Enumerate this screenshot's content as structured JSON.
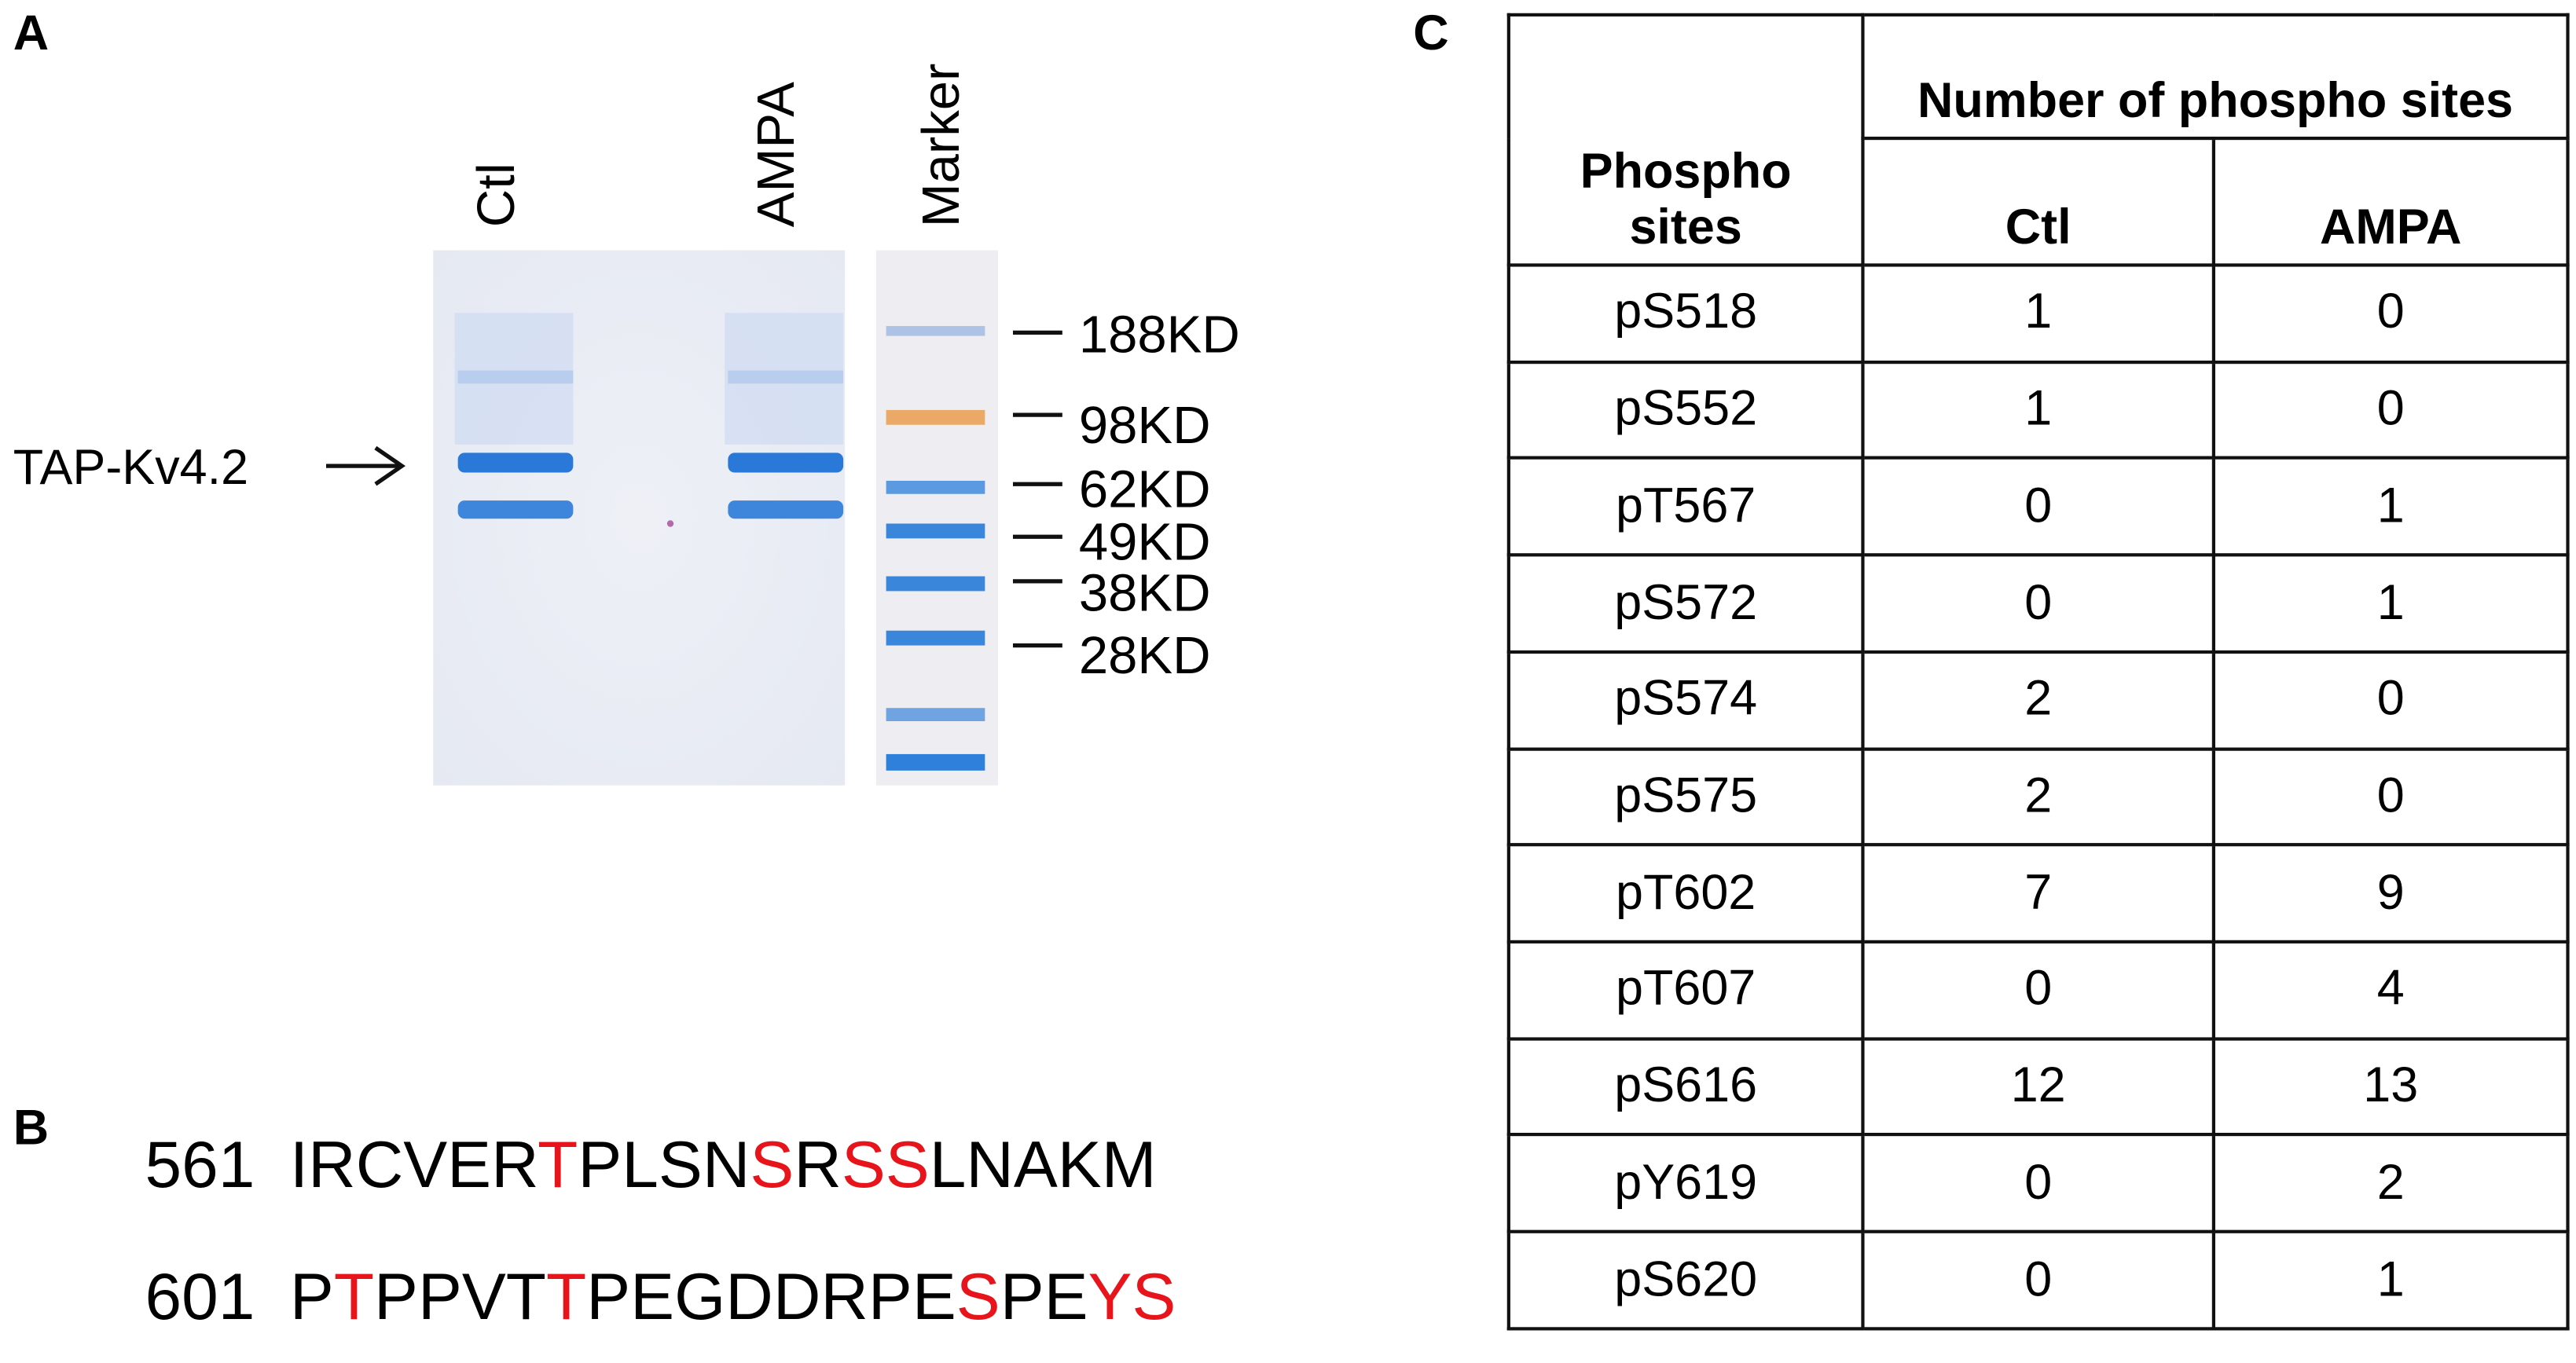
{
  "panels": {
    "a": "A",
    "b": "B",
    "c": "C"
  },
  "gel": {
    "lanes": [
      "Ctl",
      "AMPA",
      "Marker"
    ],
    "band_label": "TAP-Kv4.2",
    "markers": [
      "188KD",
      "98KD",
      "62KD",
      "49KD",
      "38KD",
      "28KD"
    ]
  },
  "sequence": [
    {
      "start": 561,
      "segments": [
        {
          "text": "IRCVER"
        },
        {
          "text": "T",
          "color": "#e8141b"
        },
        {
          "text": "PLSN"
        },
        {
          "text": "S",
          "color": "#e8141b"
        },
        {
          "text": "R"
        },
        {
          "text": "SS",
          "color": "#e8141b"
        },
        {
          "text": "LNAKM"
        }
      ]
    },
    {
      "start": 601,
      "segments": [
        {
          "text": "P"
        },
        {
          "text": "T",
          "color": "#e8141b"
        },
        {
          "text": "PPVT"
        },
        {
          "text": "T",
          "color": "#e8141b"
        },
        {
          "text": "PEGDDRPE"
        },
        {
          "text": "S",
          "color": "#e8141b"
        },
        {
          "text": "PE"
        },
        {
          "text": "YS",
          "color": "#e8141b"
        }
      ]
    }
  ],
  "table": {
    "header": {
      "site": "Phospho sites",
      "group": "Number of phospho sites",
      "columns": [
        "Ctl",
        "AMPA"
      ]
    },
    "rows": [
      [
        "pS518",
        1,
        0
      ],
      [
        "pS552",
        1,
        0
      ],
      [
        "pT567",
        0,
        1
      ],
      [
        "pS572",
        0,
        1
      ],
      [
        "pS574",
        2,
        0
      ],
      [
        "pS575",
        2,
        0
      ],
      [
        "pT602",
        7,
        9
      ],
      [
        "pT607",
        0,
        4
      ],
      [
        "pS616",
        12,
        13
      ],
      [
        "pY619",
        0,
        2
      ],
      [
        "pS620",
        0,
        1
      ]
    ]
  }
}
